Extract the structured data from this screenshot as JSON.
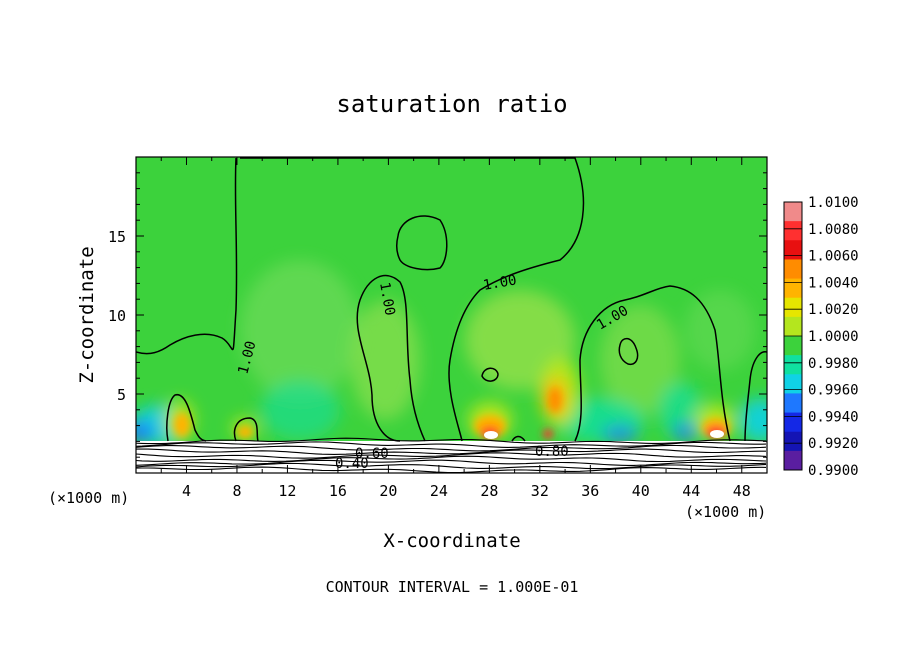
{
  "chart_data": {
    "type": "heatmap",
    "title": "saturation ratio",
    "xlabel": "X-coordinate",
    "ylabel": "Z-coordinate",
    "x_unit": "(×1000 m)",
    "y_unit": "(×1000 m)",
    "xlim": [
      0,
      50
    ],
    "ylim": [
      0,
      20
    ],
    "x_ticks": [
      4,
      8,
      12,
      16,
      20,
      24,
      28,
      32,
      36,
      40,
      44,
      48
    ],
    "y_ticks": [
      5,
      10,
      15
    ],
    "colorbar": {
      "levels": [
        "1.0100",
        "1.0080",
        "1.0060",
        "1.0040",
        "1.0020",
        "1.0000",
        "0.9980",
        "0.9960",
        "0.9940",
        "0.9920",
        "0.9900"
      ],
      "colors": [
        "#f08a8a",
        "#ff3030",
        "#e81010",
        "#ff8c00",
        "#ffb400",
        "#e6e600",
        "#b4e61e",
        "#3cd23c",
        "#10e0a0",
        "#10d2e6",
        "#1e78ff",
        "#1428e6",
        "#1414b4",
        "#5a1ea0"
      ]
    },
    "contour_labels": [
      "1.00",
      "1.00",
      "1.00",
      "1.00",
      "0.60",
      "0.80",
      "0.40"
    ],
    "contour_interval": "CONTOUR INTERVAL = 1.000E-01"
  }
}
